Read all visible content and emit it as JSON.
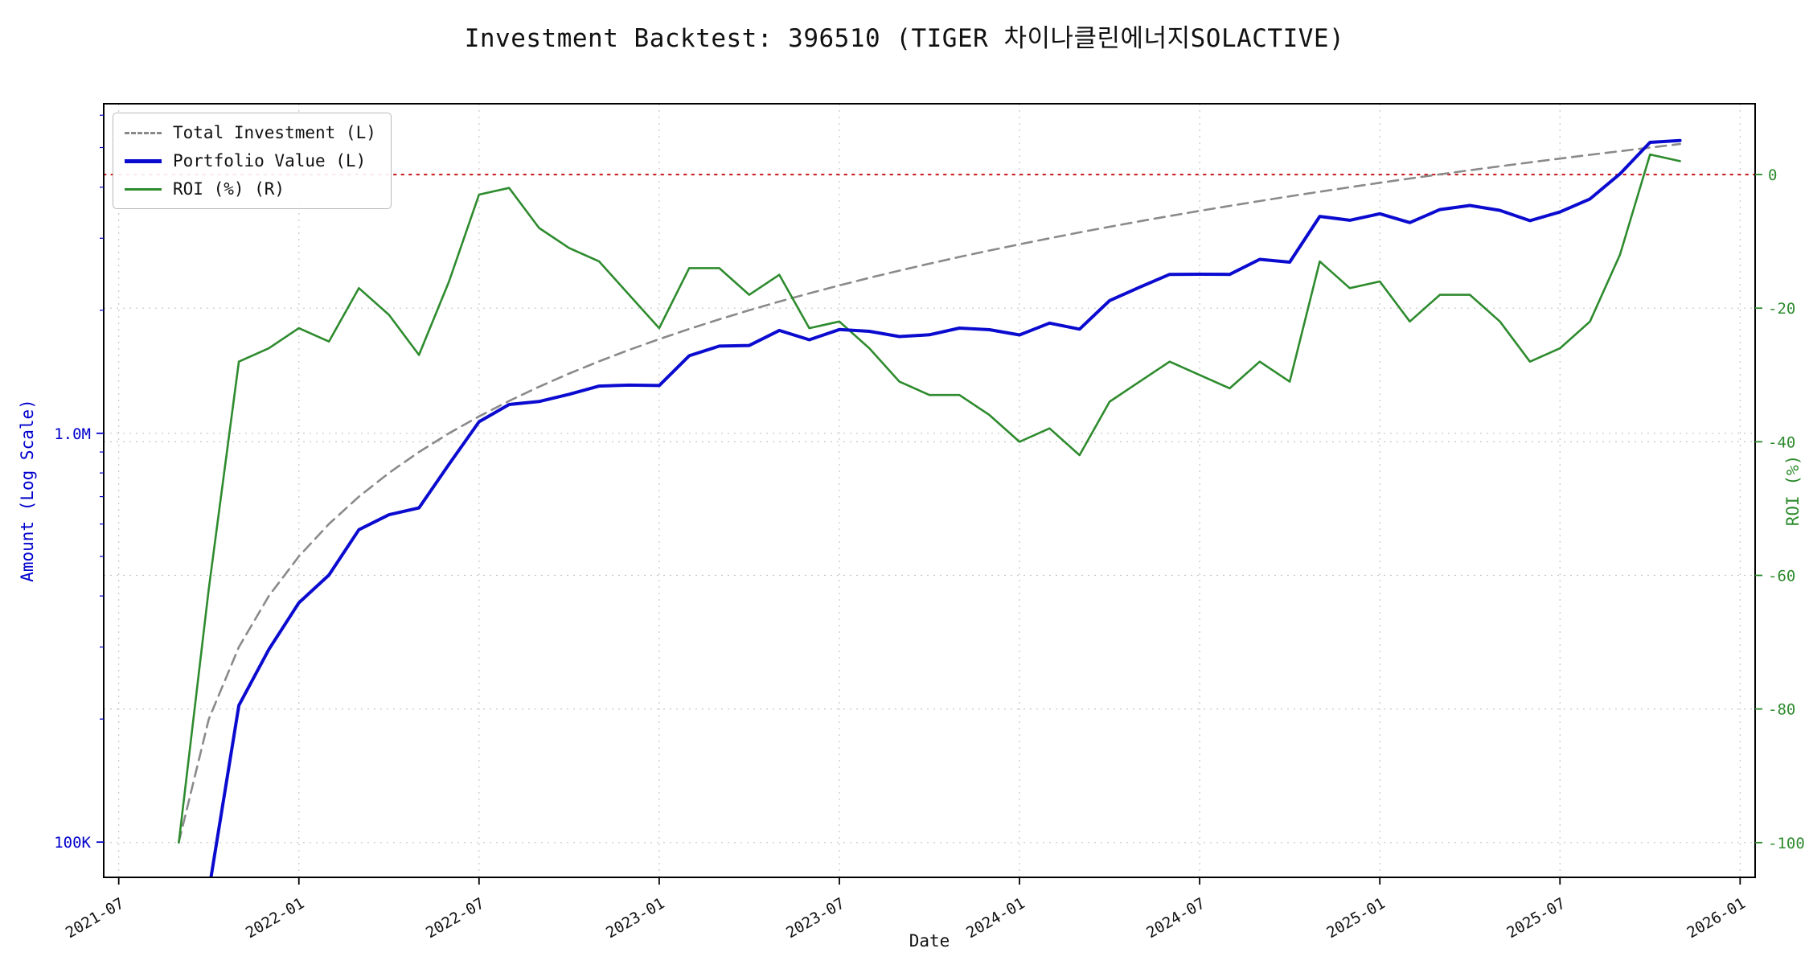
{
  "chart_data": {
    "type": "line",
    "title": "Investment Backtest: 396510 (TIGER 차이나클린에너지SOLACTIVE)",
    "xlabel": "Date",
    "ylabel_left": "Amount (Log Scale)",
    "ylabel_right": "ROI (%)",
    "grid": true,
    "grid_color": "#c6c6c6",
    "legend_position": "upper-left",
    "left_color": "#0000cd",
    "right_color": "#2e8b2e",
    "zero_line": {
      "value": 0,
      "color": "#cc2222",
      "style": "dotted"
    },
    "x_domain": {
      "start": "2021-07",
      "end": "2026-01",
      "pad_months": 0.5
    },
    "left_axis_range": [
      82000,
      6400000
    ],
    "right_axis_range": [
      -105.2,
      10.6
    ],
    "x_ticks": [
      "2021-07",
      "2022-01",
      "2022-07",
      "2023-01",
      "2023-07",
      "2024-01",
      "2024-07",
      "2025-01",
      "2025-07",
      "2026-01"
    ],
    "left_ticks": [
      {
        "label": "100K",
        "value": 100000
      },
      {
        "label": "1.0M",
        "value": 1000000
      }
    ],
    "left_minor_ticks": [
      200000,
      300000,
      400000,
      500000,
      600000,
      700000,
      800000,
      900000,
      2000000,
      3000000,
      4000000,
      5000000,
      6000000
    ],
    "right_ticks": [
      {
        "label": "0",
        "value": 0
      },
      {
        "label": "-20",
        "value": -20
      },
      {
        "label": "-40",
        "value": -40
      },
      {
        "label": "-60",
        "value": -60
      },
      {
        "label": "-80",
        "value": -80
      },
      {
        "label": "-100",
        "value": -100
      }
    ],
    "x": [
      "2021-09",
      "2021-10",
      "2021-11",
      "2021-12",
      "2022-01",
      "2022-02",
      "2022-03",
      "2022-04",
      "2022-05",
      "2022-06",
      "2022-07",
      "2022-08",
      "2022-09",
      "2022-10",
      "2022-11",
      "2022-12",
      "2023-01",
      "2023-02",
      "2023-03",
      "2023-04",
      "2023-05",
      "2023-06",
      "2023-07",
      "2023-08",
      "2023-09",
      "2023-10",
      "2023-11",
      "2023-12",
      "2024-01",
      "2024-02",
      "2024-03",
      "2024-04",
      "2024-05",
      "2024-06",
      "2024-07",
      "2024-08",
      "2024-09",
      "2024-10",
      "2024-11",
      "2024-12",
      "2025-01",
      "2025-02",
      "2025-03",
      "2025-04",
      "2025-05",
      "2025-06",
      "2025-07",
      "2025-08",
      "2025-09",
      "2025-10",
      "2025-11"
    ],
    "series": [
      {
        "name": "Total Investment (L)",
        "data_name": "total-investment-line",
        "axis": "left",
        "color": "#8a8a8a",
        "style": "dashed",
        "width": 2.6,
        "values": [
          100000,
          200000,
          300000,
          400000,
          500000,
          600000,
          700000,
          800000,
          900000,
          1000000,
          1100000,
          1200000,
          1300000,
          1400000,
          1500000,
          1600000,
          1700000,
          1800000,
          1900000,
          2000000,
          2100000,
          2200000,
          2300000,
          2400000,
          2500000,
          2600000,
          2700000,
          2800000,
          2900000,
          3000000,
          3100000,
          3200000,
          3300000,
          3400000,
          3500000,
          3600000,
          3700000,
          3800000,
          3900000,
          4000000,
          4100000,
          4200000,
          4300000,
          4400000,
          4500000,
          4600000,
          4700000,
          4800000,
          4900000,
          5000000,
          5100000
        ]
      },
      {
        "name": "Portfolio Value (L)",
        "data_name": "portfolio-value-line",
        "axis": "left",
        "color": "#0b0bd0",
        "style": "solid",
        "width": 4,
        "values": [
          0,
          76000,
          216000,
          296000,
          385000,
          450000,
          581000,
          632000,
          657000,
          840000,
          1067000,
          1176000,
          1196000,
          1246000,
          1305000,
          1312000,
          1309000,
          1548000,
          1634000,
          1640000,
          1785000,
          1694000,
          1794000,
          1776000,
          1725000,
          1742000,
          1809000,
          1792000,
          1740000,
          1860000,
          1798000,
          2112000,
          2277000,
          2448000,
          2450000,
          2448000,
          2664000,
          2622000,
          3393000,
          3320000,
          3444000,
          3276000,
          3526000,
          3608000,
          3510000,
          3312000,
          3478000,
          3744000,
          4312000,
          5150000,
          5202000
        ]
      },
      {
        "name": "ROI (%) (R)",
        "data_name": "roi-line",
        "axis": "right",
        "color": "#2e8b2e",
        "style": "solid",
        "width": 2.6,
        "values": [
          -100,
          -62,
          -28,
          -26,
          -23,
          -25,
          -17,
          -21,
          -27,
          -16,
          -3,
          -2,
          -8,
          -11,
          -13,
          -18,
          -23,
          -14,
          -14,
          -18,
          -15,
          -23,
          -22,
          -26,
          -31,
          -33,
          -33,
          -36,
          -40,
          -38,
          -42,
          -34,
          -31,
          -28,
          -30,
          -32,
          -28,
          -31,
          -13,
          -17,
          -16,
          -22,
          -18,
          -18,
          -22,
          -28,
          -26,
          -22,
          -12,
          3,
          2
        ]
      }
    ]
  }
}
